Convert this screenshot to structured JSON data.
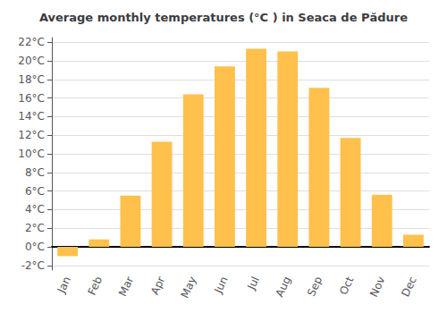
{
  "chart_data": {
    "type": "bar",
    "title": "Average monthly temperatures (°C ) in Seaca de Pădure",
    "categories": [
      "Jan",
      "Feb",
      "Mar",
      "Apr",
      "May",
      "Jun",
      "Jul",
      "Aug",
      "Sep",
      "Oct",
      "Nov",
      "Dec"
    ],
    "values": [
      -1.0,
      0.8,
      5.5,
      11.3,
      16.4,
      19.4,
      21.3,
      21.0,
      17.1,
      11.7,
      5.6,
      1.3
    ],
    "color": "#FFC04C",
    "ylim": [
      -2.5,
      22.5
    ],
    "yticks": [
      {
        "value": -2,
        "label": "-2°C"
      },
      {
        "value": 0,
        "label": "0°C"
      },
      {
        "value": 2,
        "label": "2°C"
      },
      {
        "value": 4,
        "label": "4°C"
      },
      {
        "value": 6,
        "label": "6°C"
      },
      {
        "value": 8,
        "label": "8°C"
      },
      {
        "value": 10,
        "label": "10°C"
      },
      {
        "value": 12,
        "label": "12°C"
      },
      {
        "value": 14,
        "label": "14°C"
      },
      {
        "value": 16,
        "label": "16°C"
      },
      {
        "value": 18,
        "label": "18°C"
      },
      {
        "value": 20,
        "label": "20°C"
      },
      {
        "value": 22,
        "label": "22°C"
      }
    ],
    "grid": true
  }
}
